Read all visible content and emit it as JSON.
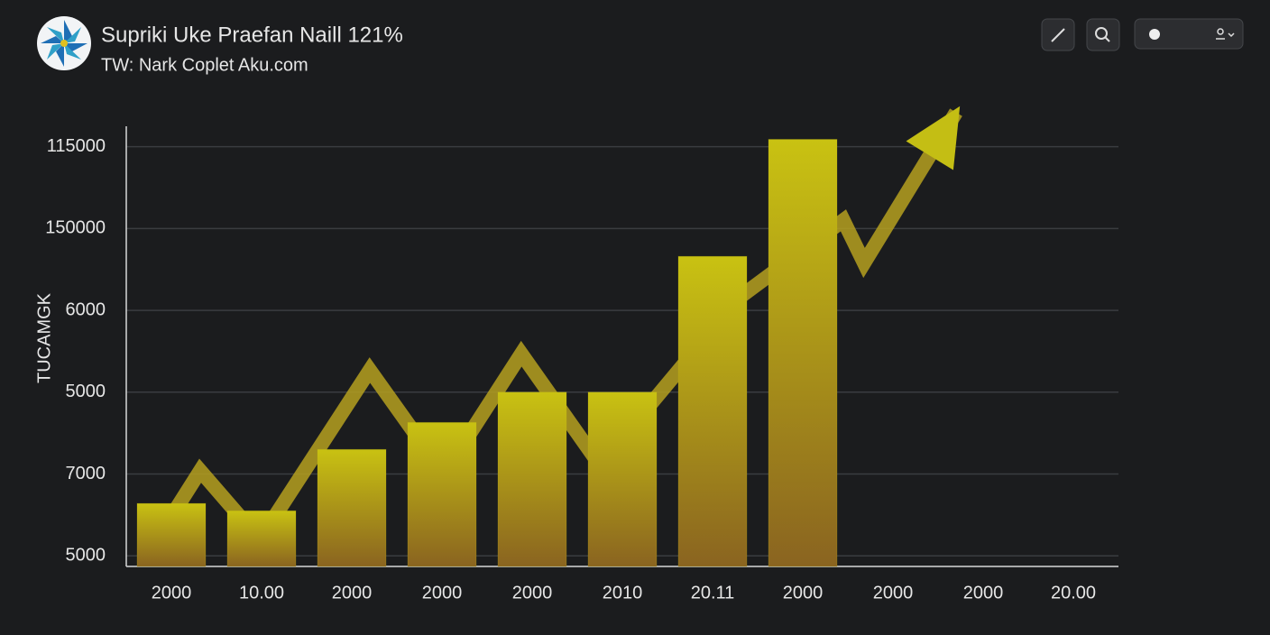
{
  "header": {
    "title": "Supriki Uke Praefan Naill 121%",
    "subtitle": "TW: Nark Coplet Aku.com"
  },
  "chart_data": {
    "type": "bar",
    "y_label": "TUCAMGK",
    "categories": [
      "2000",
      "10.00",
      "2000",
      "2000",
      "2000",
      "2010",
      "20.11",
      "2000",
      "2000",
      "2000",
      "20.00"
    ],
    "values": [
      0.64,
      0.55,
      1.3,
      1.63,
      2.0,
      2.0,
      3.66,
      5.09,
      null,
      null,
      null
    ],
    "ylim": [
      -0.13,
      5.25
    ],
    "yticks": [
      {
        "value": 0,
        "label": "5000"
      },
      {
        "value": 1,
        "label": "7000"
      },
      {
        "value": 2,
        "label": "5000"
      },
      {
        "value": 3,
        "label": "6000"
      },
      {
        "value": 4,
        "label": "150000"
      },
      {
        "value": 5,
        "label": "115000"
      }
    ],
    "grid": true,
    "color": "#c8c010",
    "line": {
      "color": "#b5a020",
      "x": [
        -0.3,
        0.32,
        0.98,
        2.2,
        3.02,
        3.88,
        4.75,
        6.3,
        7.45,
        7.68,
        8.7
      ],
      "values": [
        -0.04,
        1.04,
        0.2,
        2.27,
        1.0,
        2.47,
        1.11,
        3.16,
        4.1,
        3.58,
        5.42
      ]
    }
  }
}
